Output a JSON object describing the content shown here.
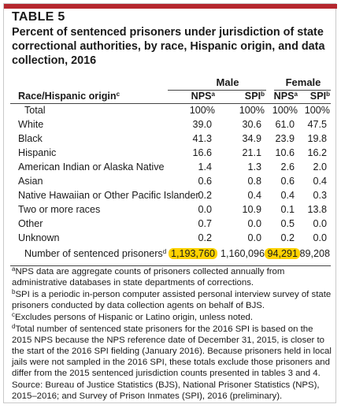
{
  "table_label": "TABLE 5",
  "caption": "Percent of sentenced prisoners under jurisdiction of state correctional authorities, by race, Hispanic origin, and data collection, 2016",
  "groups": {
    "male": "Male",
    "female": "Female"
  },
  "header": {
    "row_label": "Race/Hispanic origin",
    "row_label_sup": "c",
    "cols": [
      {
        "label": "NPS",
        "sup": "a"
      },
      {
        "label": "SPI",
        "sup": "b"
      },
      {
        "label": "NPS",
        "sup": "a"
      },
      {
        "label": "SPI",
        "sup": "b"
      }
    ]
  },
  "rows": [
    {
      "label": "Total",
      "values": [
        "100%",
        "100%",
        "100%",
        "100%"
      ]
    },
    {
      "label": "White",
      "values": [
        "39.0",
        "30.6",
        "61.0",
        "47.5"
      ]
    },
    {
      "label": "Black",
      "values": [
        "41.3",
        "34.9",
        "23.9",
        "19.8"
      ]
    },
    {
      "label": "Hispanic",
      "values": [
        "16.6",
        "21.1",
        "10.6",
        "16.2"
      ]
    },
    {
      "label": "American Indian or Alaska Native",
      "values": [
        "1.4",
        "1.3",
        "2.6",
        "2.0"
      ]
    },
    {
      "label": "Asian",
      "values": [
        "0.6",
        "0.8",
        "0.6",
        "0.4"
      ]
    },
    {
      "label": "Native Hawaiian or Other Pacific Islander",
      "values": [
        "0.2",
        "0.4",
        "0.4",
        "0.3"
      ]
    },
    {
      "label": "Two or more races",
      "values": [
        "0.0",
        "10.9",
        "0.1",
        "13.8"
      ]
    },
    {
      "label": "Other",
      "values": [
        "0.7",
        "0.0",
        "0.5",
        "0.0"
      ]
    },
    {
      "label": "Unknown",
      "values": [
        "0.2",
        "0.0",
        "0.2",
        "0.0"
      ]
    }
  ],
  "total_row": {
    "label": "Number of sentenced prisoners",
    "sup": "d",
    "values": [
      "1,193,760",
      "1,160,096",
      "94,291",
      "89,208"
    ]
  },
  "notes": [
    {
      "sup": "a",
      "text": "NPS data are aggregate counts of prisoners collected annually from administrative databases in state departments of corrections."
    },
    {
      "sup": "b",
      "text": "SPI is a periodic in-person computer assisted personal interview survey of state prisoners conducted by data collection agents on behalf of BJS."
    },
    {
      "sup": "c",
      "text": "Excludes persons of Hispanic or Latino origin, unless noted."
    },
    {
      "sup": "d",
      "text": "Total number of sentenced state prisoners for the 2016 SPI is based on the 2015 NPS because the NPS reference date of December 31, 2015, is closer to the start of the 2016 SPI fielding (January 2016). Because prisoners held in local jails were not sampled in the 2016 SPI, these totals exclude those prisoners and differ from the 2015 sentenced jurisdiction counts presented in tables 3 and 4."
    },
    {
      "sup": "",
      "text": "Source: Bureau of Justice Statistics (BJS), National Prisoner Statistics (NPS), 2015–2016; and Survey of Prison Inmates (SPI), 2016 (preliminary)."
    }
  ],
  "colors": {
    "accent": "#b5272e",
    "highlight": "#ffd200"
  }
}
